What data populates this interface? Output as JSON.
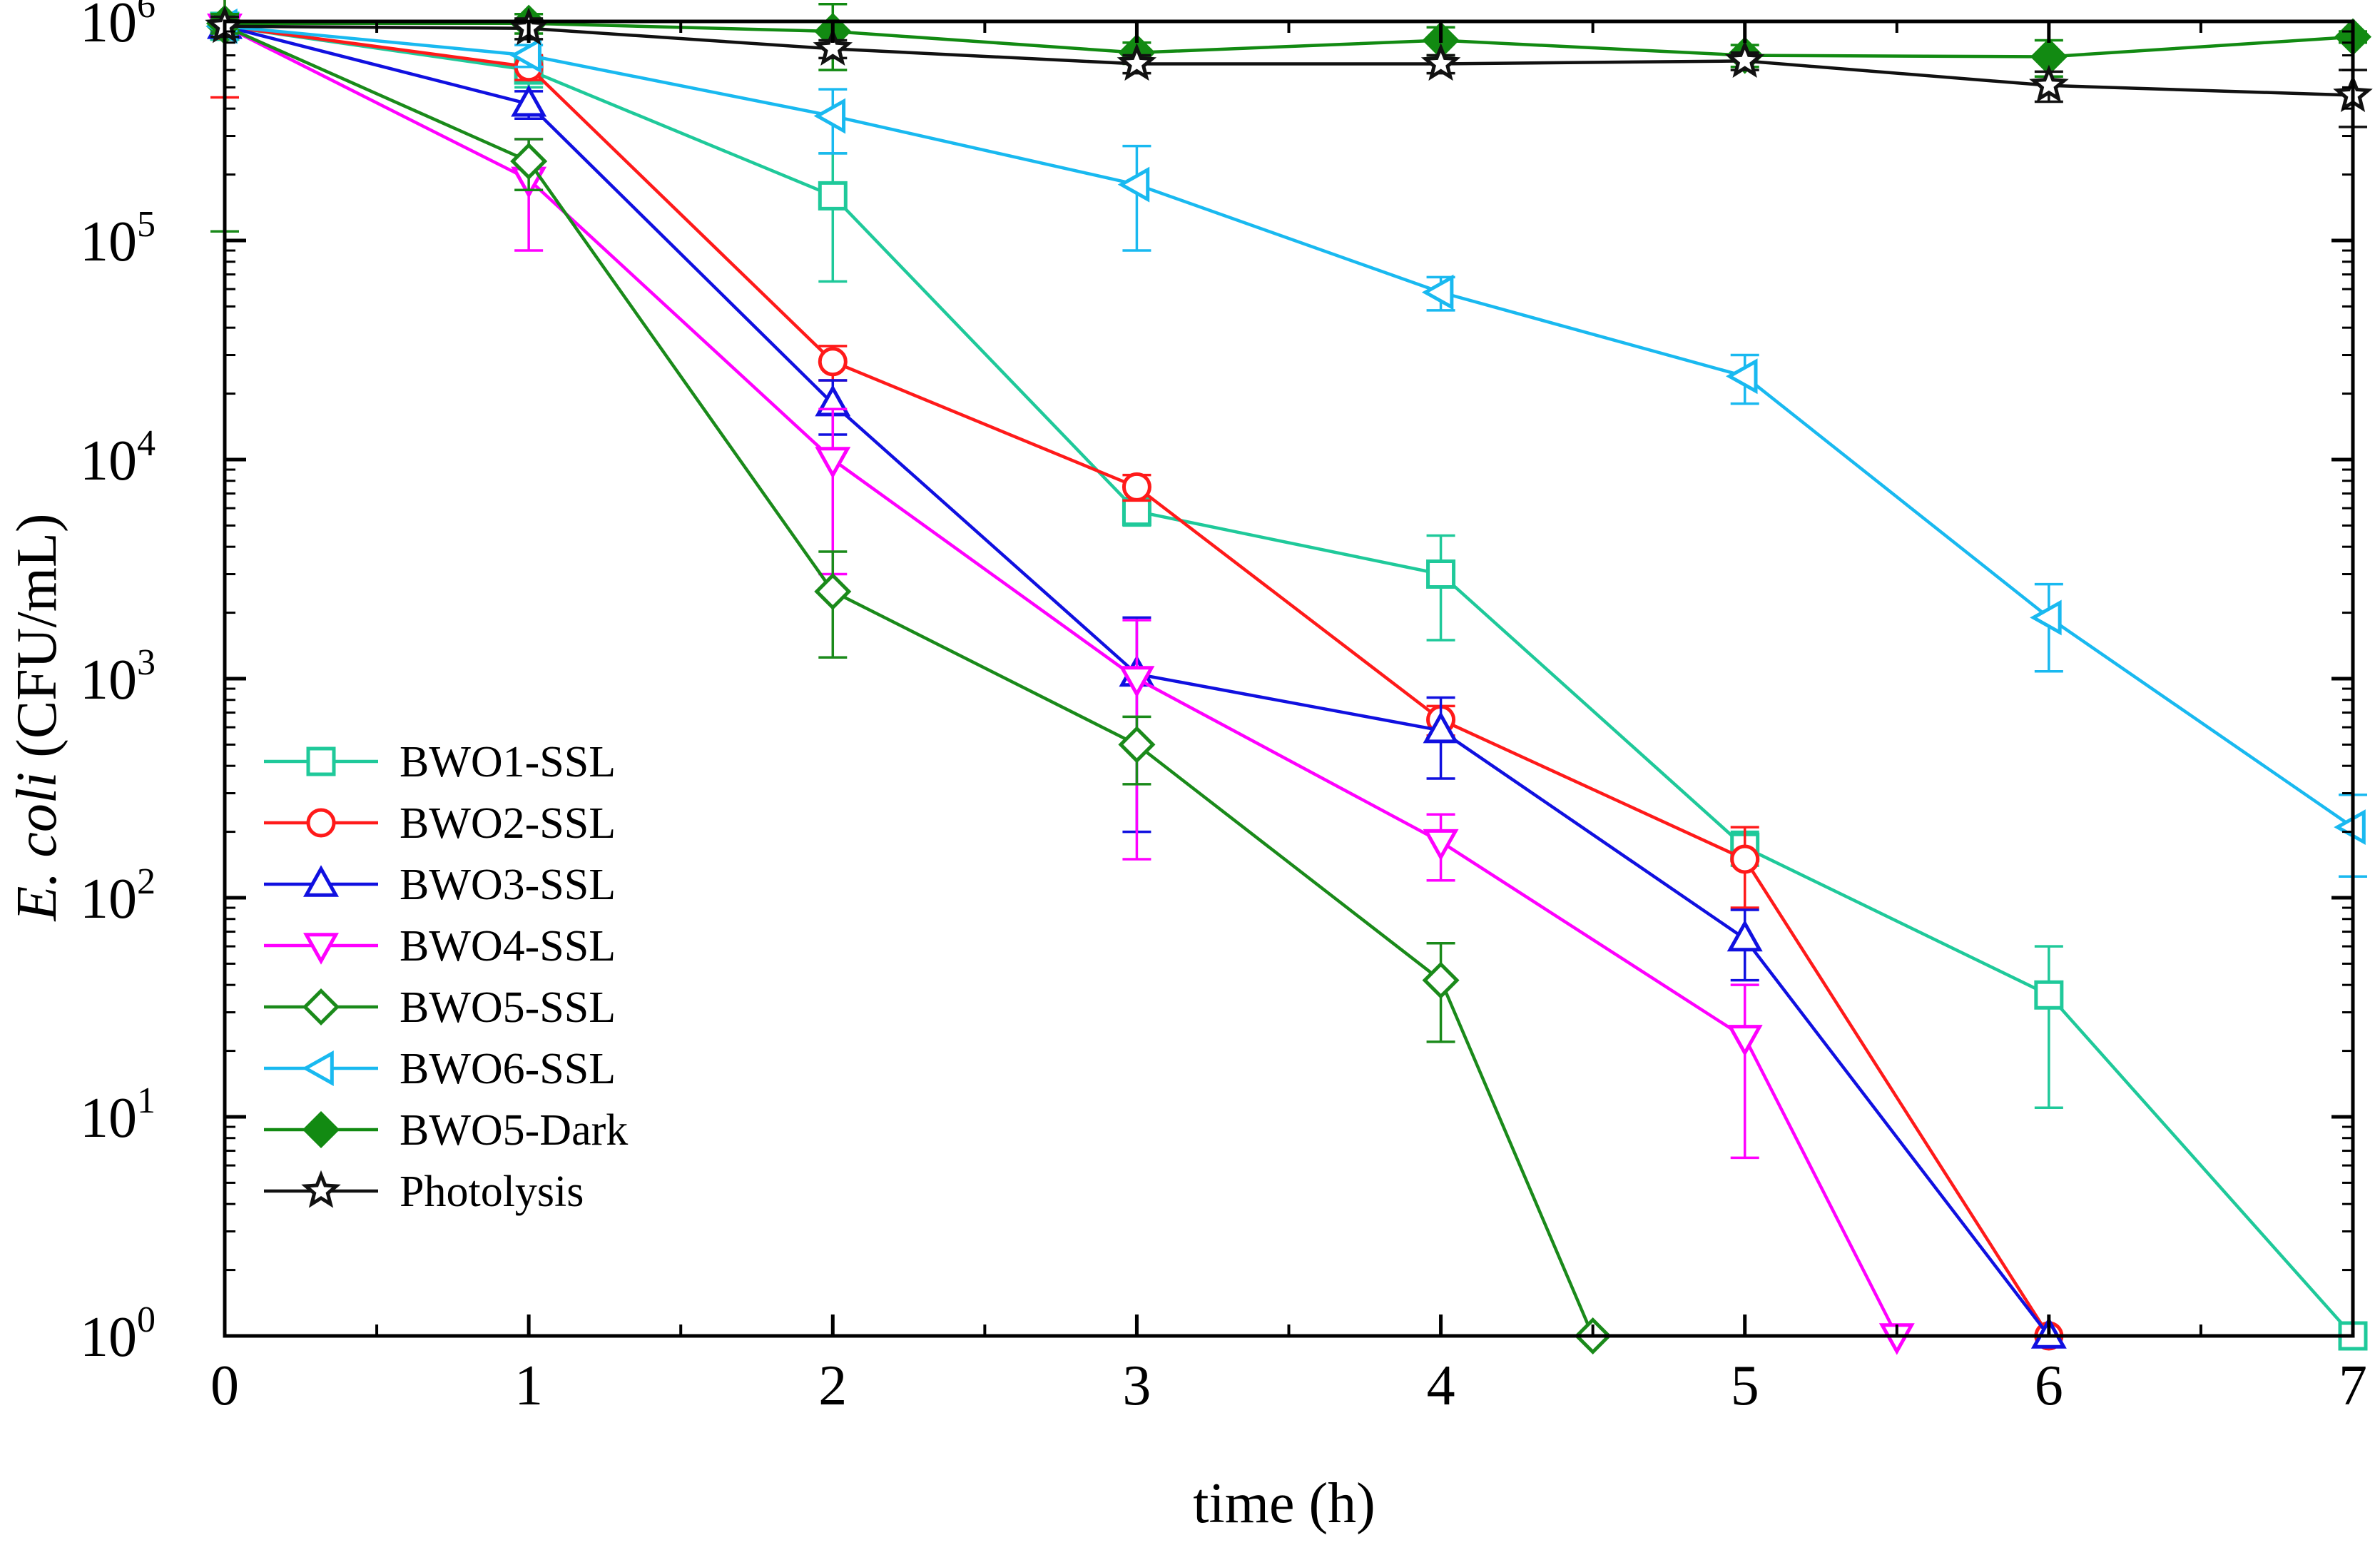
{
  "chart_data": {
    "type": "line",
    "title": "",
    "xlabel": "time (h)",
    "ylabel_italic": "E. coli",
    "ylabel_rest": " (CFU/mL)",
    "yscale": "log",
    "xlim": [
      0,
      7
    ],
    "ylim": [
      1,
      1000000
    ],
    "x_ticks": [
      0,
      1,
      2,
      3,
      4,
      5,
      6,
      7
    ],
    "x_tick_labels": [
      "0",
      "1",
      "2",
      "3",
      "4",
      "5",
      "6",
      "7"
    ],
    "y_ticks": [
      1,
      10,
      100,
      1000,
      10000,
      100000,
      1000000
    ],
    "y_tick_base": "10",
    "y_tick_exponents": [
      "0",
      "1",
      "2",
      "3",
      "4",
      "5",
      "6"
    ],
    "legend_position": "bottom-left",
    "series": [
      {
        "name": "BWO1-SSL",
        "color": "#1FC99A",
        "marker": "square",
        "filled": false,
        "x": [
          0,
          1,
          2,
          3,
          4,
          5,
          6,
          7
        ],
        "y": [
          950000,
          600000,
          160000,
          5800,
          3000,
          170,
          36,
          1
        ],
        "err": [
          [
            850000,
            1050000
          ],
          [
            500000,
            700000
          ],
          [
            65000,
            250000
          ],
          [
            5000,
            6600
          ],
          [
            1500,
            4500
          ],
          [
            140,
            200
          ],
          [
            11,
            60
          ],
          null
        ]
      },
      {
        "name": "BWO2-SSL",
        "color": "#FF1A1A",
        "marker": "circle",
        "filled": false,
        "x": [
          0,
          1,
          2,
          3,
          4,
          5,
          6
        ],
        "y": [
          950000,
          620000,
          28000,
          7500,
          650,
          150,
          1
        ],
        "err": [
          [
            450000,
            1500000
          ],
          [
            540000,
            700000
          ],
          [
            23000,
            33000
          ],
          [
            6500,
            8500
          ],
          [
            550,
            750
          ],
          [
            90,
            210
          ],
          null
        ]
      },
      {
        "name": "BWO3-SSL",
        "color": "#1010E0",
        "marker": "triangle-up",
        "filled": false,
        "x": [
          0,
          1,
          2,
          3,
          4,
          5,
          6
        ],
        "y": [
          950000,
          420000,
          18000,
          1050,
          580,
          65,
          1
        ],
        "err": [
          [
            850000,
            1050000
          ],
          [
            360000,
            480000
          ],
          [
            13000,
            23000
          ],
          [
            200,
            1900
          ],
          [
            350,
            820
          ],
          [
            42,
            88
          ],
          null
        ]
      },
      {
        "name": "BWO4-SSL",
        "color": "#FF00FF",
        "marker": "triangle-down",
        "filled": false,
        "x": [
          0,
          1,
          2,
          3,
          4,
          5,
          5.5
        ],
        "y": [
          950000,
          190000,
          10000,
          1000,
          180,
          23,
          1
        ],
        "err": [
          [
            850000,
            1050000
          ],
          [
            90000,
            290000
          ],
          [
            3000,
            17000
          ],
          [
            150,
            1850
          ],
          [
            120,
            240
          ],
          [
            6.5,
            40
          ],
          null
        ]
      },
      {
        "name": "BWO5-SSL",
        "color": "#1A8A1A",
        "marker": "diamond",
        "filled": false,
        "x": [
          0,
          1,
          2,
          3,
          4,
          4.5
        ],
        "y": [
          950000,
          230000,
          2500,
          500,
          42,
          1
        ],
        "err": [
          [
            110000,
            1800000
          ],
          [
            170000,
            290000
          ],
          [
            1250,
            3800
          ],
          [
            330,
            670
          ],
          [
            22,
            62
          ],
          null
        ]
      },
      {
        "name": "BWO6-SSL",
        "color": "#19B9F0",
        "marker": "triangle-left",
        "filled": false,
        "x": [
          0,
          1,
          2,
          3,
          4,
          5,
          6,
          7
        ],
        "y": [
          950000,
          700000,
          370000,
          180000,
          58000,
          24000,
          1900,
          210
        ],
        "err": [
          [
            850000,
            1050000
          ],
          [
            620000,
            780000
          ],
          [
            250000,
            490000
          ],
          [
            90000,
            270000
          ],
          [
            48000,
            68000
          ],
          [
            18000,
            30000
          ],
          [
            1080,
            2700
          ],
          [
            125,
            295
          ]
        ]
      },
      {
        "name": "BWO5-Dark",
        "color": "#128A12",
        "marker": "diamond",
        "filled": true,
        "x": [
          0,
          1,
          2,
          3,
          4,
          5,
          6,
          7
        ],
        "y": [
          980000,
          980000,
          900000,
          720000,
          820000,
          700000,
          690000,
          850000
        ],
        "err": [
          [
            880000,
            1080000
          ],
          [
            880000,
            1080000
          ],
          [
            600000,
            1200000
          ],
          [
            640000,
            800000
          ],
          [
            700000,
            940000
          ],
          [
            620000,
            780000
          ],
          [
            560000,
            820000
          ],
          [
            800000,
            900000
          ]
        ]
      },
      {
        "name": "Photolysis",
        "color": "#111111",
        "marker": "star",
        "filled": false,
        "x": [
          0,
          1,
          2,
          3,
          4,
          5,
          6,
          7
        ],
        "y": [
          950000,
          930000,
          750000,
          640000,
          640000,
          660000,
          510000,
          460000
        ],
        "err": [
          [
            850000,
            1050000
          ],
          [
            830000,
            1030000
          ],
          [
            680000,
            820000
          ],
          [
            580000,
            700000
          ],
          [
            580000,
            700000
          ],
          [
            600000,
            720000
          ],
          [
            430000,
            590000
          ],
          [
            330000,
            600000
          ]
        ]
      }
    ]
  }
}
